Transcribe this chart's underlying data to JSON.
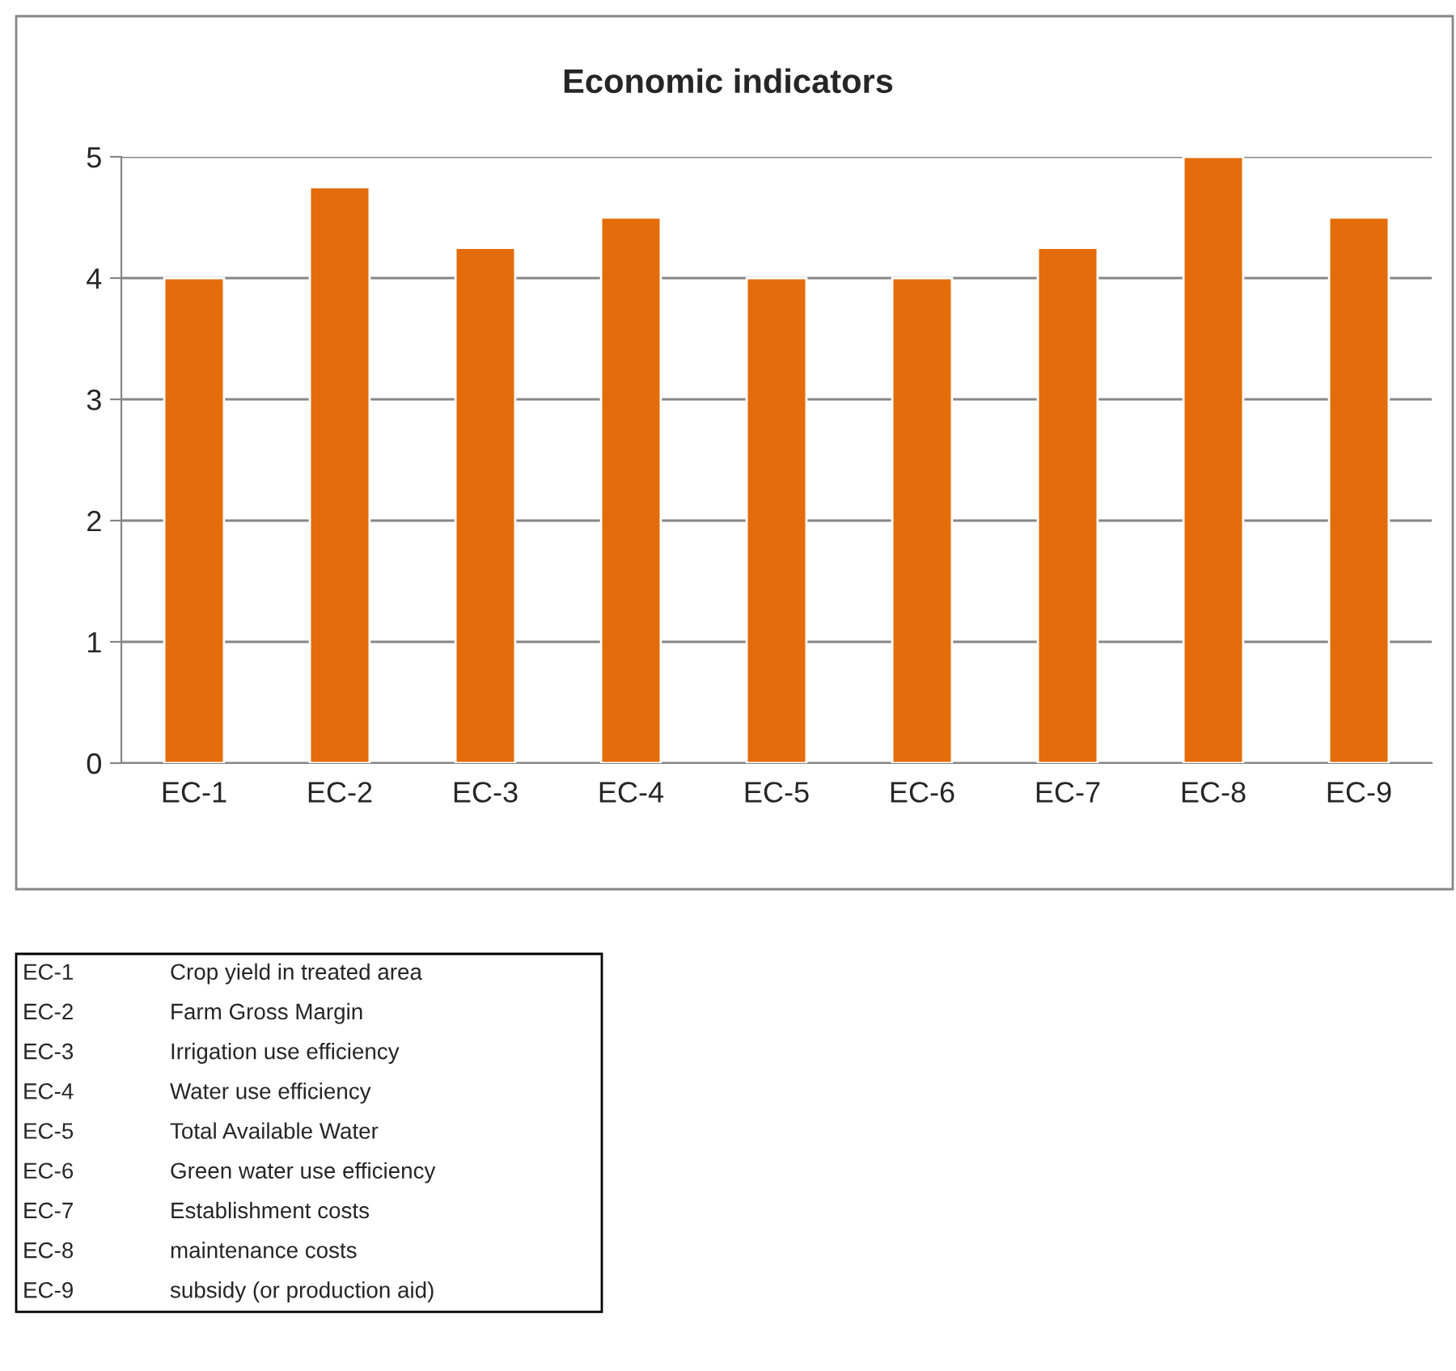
{
  "chart_data": {
    "type": "bar",
    "title": "Economic indicators",
    "categories": [
      "EC-1",
      "EC-2",
      "EC-3",
      "EC-4",
      "EC-5",
      "EC-6",
      "EC-7",
      "EC-8",
      "EC-9"
    ],
    "values": [
      4,
      4.75,
      4.25,
      4.5,
      4,
      4,
      4.25,
      5,
      4.5
    ],
    "color": "#e46c0a",
    "ylim": [
      0,
      5
    ],
    "yticks": [
      0,
      1,
      2,
      3,
      4,
      5
    ],
    "grid": "y",
    "annotations": [
      "EC-1",
      "Crop yield in treated area",
      "EC-2",
      "Farm Gross Margin",
      "EC-3",
      "Irrigation use efficiency",
      "EC-4",
      "Water use efficiency",
      "EC-5",
      "Total Available Water",
      "EC-6",
      "Green water use efficiency",
      "EC-7",
      "Establishment costs",
      "EC-8",
      "maintenance costs",
      "EC-9",
      "subsidy (or production aid)"
    ]
  }
}
